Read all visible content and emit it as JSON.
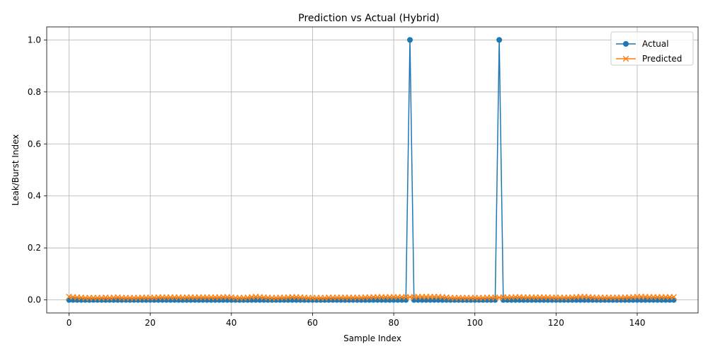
{
  "chart_data": {
    "type": "line",
    "title": "Prediction vs Actual (Hybrid)",
    "xlabel": "Sample Index",
    "ylabel": "Leak/Burst Index",
    "xlim": [
      -5.5,
      155
    ],
    "ylim": [
      -0.05,
      1.05
    ],
    "xticks": [
      0,
      20,
      40,
      60,
      80,
      100,
      120,
      140
    ],
    "yticks": [
      0.0,
      0.2,
      0.4,
      0.6,
      0.8,
      1.0
    ],
    "xtick_labels": [
      "0",
      "20",
      "40",
      "60",
      "80",
      "100",
      "120",
      "140"
    ],
    "ytick_labels": [
      "0.0",
      "0.2",
      "0.4",
      "0.6",
      "0.8",
      "1.0"
    ],
    "grid": true,
    "legend_position": "top-right",
    "x": [
      0,
      1,
      2,
      3,
      4,
      5,
      6,
      7,
      8,
      9,
      10,
      11,
      12,
      13,
      14,
      15,
      16,
      17,
      18,
      19,
      20,
      21,
      22,
      23,
      24,
      25,
      26,
      27,
      28,
      29,
      30,
      31,
      32,
      33,
      34,
      35,
      36,
      37,
      38,
      39,
      40,
      41,
      42,
      43,
      44,
      45,
      46,
      47,
      48,
      49,
      50,
      51,
      52,
      53,
      54,
      55,
      56,
      57,
      58,
      59,
      60,
      61,
      62,
      63,
      64,
      65,
      66,
      67,
      68,
      69,
      70,
      71,
      72,
      73,
      74,
      75,
      76,
      77,
      78,
      79,
      80,
      81,
      82,
      83,
      84,
      85,
      86,
      87,
      88,
      89,
      90,
      91,
      92,
      93,
      94,
      95,
      96,
      97,
      98,
      99,
      100,
      101,
      102,
      103,
      104,
      105,
      106,
      107,
      108,
      109,
      110,
      111,
      112,
      113,
      114,
      115,
      116,
      117,
      118,
      119,
      120,
      121,
      122,
      123,
      124,
      125,
      126,
      127,
      128,
      129,
      130,
      131,
      132,
      133,
      134,
      135,
      136,
      137,
      138,
      139,
      140,
      141,
      142,
      143,
      144,
      145,
      146,
      147,
      148,
      149
    ],
    "series": [
      {
        "name": "Actual",
        "color": "#1f77b4",
        "marker": "circle",
        "values": [
          0,
          0,
          0,
          0,
          0,
          0,
          0,
          0,
          0,
          0,
          0,
          0,
          0,
          0,
          0,
          0,
          0,
          0,
          0,
          0,
          0,
          0,
          0,
          0,
          0,
          0,
          0,
          0,
          0,
          0,
          0,
          0,
          0,
          0,
          0,
          0,
          0,
          0,
          0,
          0,
          0,
          0,
          0,
          0,
          0,
          0,
          0,
          0,
          0,
          0,
          0,
          0,
          0,
          0,
          0,
          0,
          0,
          0,
          0,
          0,
          0,
          0,
          0,
          0,
          0,
          0,
          0,
          0,
          0,
          0,
          0,
          0,
          0,
          0,
          0,
          0,
          0,
          0,
          0,
          0,
          0,
          0,
          0,
          0,
          1,
          0,
          0,
          0,
          0,
          0,
          0,
          0,
          0,
          0,
          0,
          0,
          0,
          0,
          0,
          0,
          0,
          0,
          0,
          0,
          0,
          0,
          1,
          0,
          0,
          0,
          0,
          0,
          0,
          0,
          0,
          0,
          0,
          0,
          0,
          0,
          0,
          0,
          0,
          0,
          0,
          0,
          0,
          0,
          0,
          0,
          0,
          0,
          0,
          0,
          0,
          0,
          0,
          0,
          0,
          0,
          0,
          0,
          0,
          0,
          0,
          0,
          0,
          0,
          0,
          0
        ]
      },
      {
        "name": "Predicted",
        "color": "#ff7f0e",
        "marker": "x",
        "values": [
          0.012,
          0.011,
          0.01,
          0.009,
          0.008,
          0.008,
          0.008,
          0.008,
          0.008,
          0.009,
          0.008,
          0.009,
          0.01,
          0.008,
          0.008,
          0.008,
          0.008,
          0.008,
          0.009,
          0.009,
          0.009,
          0.009,
          0.01,
          0.01,
          0.01,
          0.01,
          0.01,
          0.01,
          0.009,
          0.01,
          0.01,
          0.01,
          0.01,
          0.01,
          0.01,
          0.01,
          0.01,
          0.01,
          0.011,
          0.011,
          0.01,
          0.008,
          0.008,
          0.008,
          0.009,
          0.011,
          0.012,
          0.011,
          0.01,
          0.009,
          0.008,
          0.008,
          0.009,
          0.009,
          0.01,
          0.011,
          0.011,
          0.01,
          0.009,
          0.008,
          0.008,
          0.008,
          0.008,
          0.008,
          0.009,
          0.009,
          0.009,
          0.009,
          0.009,
          0.009,
          0.009,
          0.009,
          0.009,
          0.01,
          0.01,
          0.011,
          0.011,
          0.011,
          0.011,
          0.011,
          0.011,
          0.011,
          0.011,
          0.011,
          0.011,
          0.011,
          0.012,
          0.012,
          0.012,
          0.012,
          0.012,
          0.012,
          0.011,
          0.01,
          0.008,
          0.008,
          0.008,
          0.008,
          0.008,
          0.008,
          0.008,
          0.008,
          0.008,
          0.009,
          0.009,
          0.009,
          0.009,
          0.01,
          0.01,
          0.01,
          0.011,
          0.011,
          0.01,
          0.01,
          0.01,
          0.01,
          0.01,
          0.01,
          0.01,
          0.009,
          0.009,
          0.009,
          0.009,
          0.009,
          0.01,
          0.011,
          0.012,
          0.012,
          0.011,
          0.01,
          0.009,
          0.009,
          0.009,
          0.009,
          0.009,
          0.009,
          0.009,
          0.01,
          0.01,
          0.011,
          0.012,
          0.012,
          0.012,
          0.011,
          0.011,
          0.011,
          0.011,
          0.011,
          0.011,
          0.011
        ]
      }
    ]
  }
}
